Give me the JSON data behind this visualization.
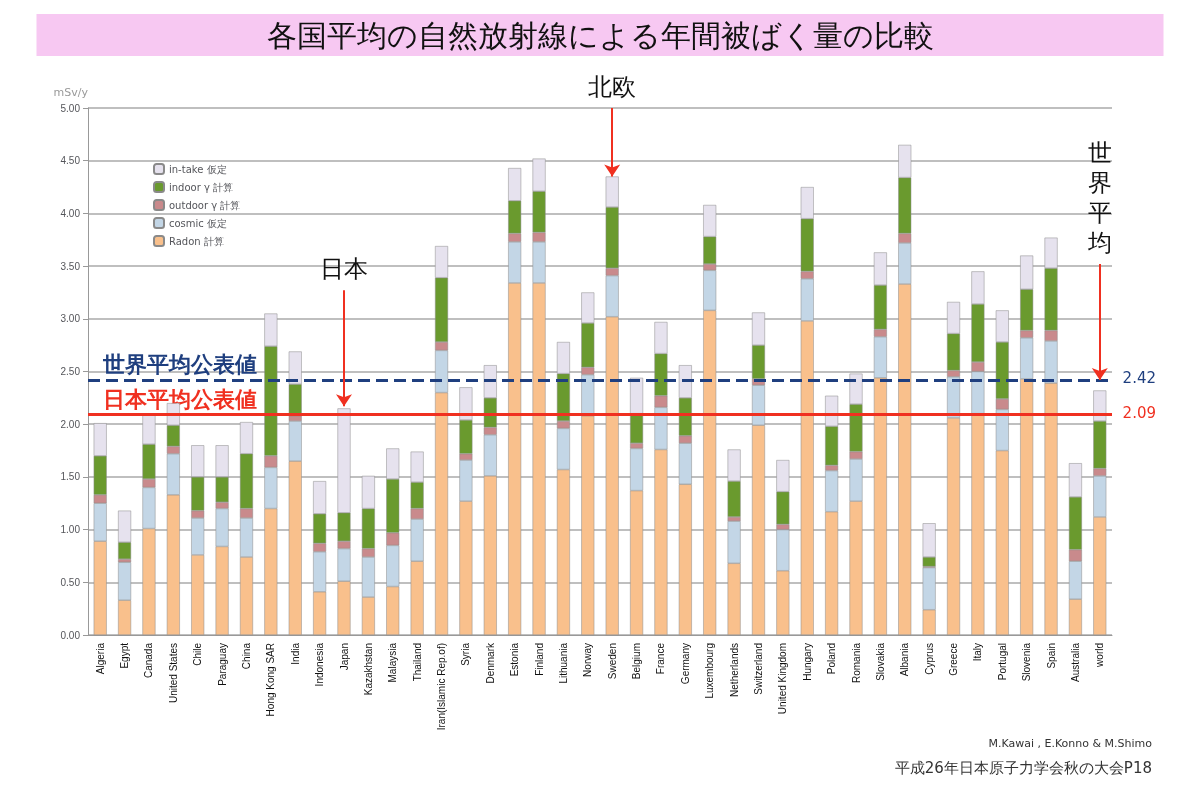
{
  "chart_data": {
    "type": "bar",
    "title": "各国平均の自然放射線による年間被ばく量の比較",
    "ylabel": "mSv/y",
    "categories": [
      "Algeria",
      "Egypt",
      "Canada",
      "United States",
      "Chile",
      "Paraguay",
      "China",
      "Hong Kong SAR",
      "India",
      "Indonesia",
      "Japan",
      "Kazakhstan",
      "Malaysia",
      "Thailand",
      "Iran(Islamic Rep.of)",
      "Syria",
      "Denmark",
      "Estonia",
      "Finland",
      "Lithuania",
      "Norway",
      "Sweden",
      "Belgium",
      "France",
      "Germany",
      "Luxembourg",
      "Netherlands",
      "Switzerland",
      "United Kingdom",
      "Hungary",
      "Poland",
      "Romania",
      "Slovakia",
      "Albania",
      "Cyprus",
      "Greece",
      "Italy",
      "Portugal",
      "Slovenia",
      "Spain",
      "Australia",
      "world"
    ],
    "stacked": true,
    "series": [
      {
        "name": "Radon 計算",
        "color": "#f9c08c",
        "values": [
          0.89,
          0.33,
          1.01,
          1.33,
          0.76,
          0.84,
          0.74,
          1.2,
          1.65,
          0.41,
          0.51,
          0.36,
          0.46,
          0.7,
          2.3,
          1.27,
          1.51,
          3.34,
          3.34,
          1.57,
          2.08,
          3.02,
          1.37,
          1.76,
          1.43,
          3.08,
          0.68,
          1.99,
          0.61,
          2.98,
          1.17,
          1.27,
          2.44,
          3.33,
          0.24,
          2.06,
          2.1,
          1.75,
          2.43,
          2.39,
          0.34,
          1.12
        ]
      },
      {
        "name": "cosmic 仮定",
        "color": "#c3d6e6",
        "values": [
          0.36,
          0.36,
          0.39,
          0.39,
          0.35,
          0.36,
          0.37,
          0.39,
          0.38,
          0.38,
          0.31,
          0.38,
          0.39,
          0.4,
          0.4,
          0.39,
          0.39,
          0.39,
          0.39,
          0.39,
          0.39,
          0.39,
          0.4,
          0.4,
          0.39,
          0.38,
          0.4,
          0.38,
          0.39,
          0.4,
          0.39,
          0.4,
          0.39,
          0.39,
          0.4,
          0.39,
          0.4,
          0.39,
          0.39,
          0.4,
          0.36,
          0.39
        ]
      },
      {
        "name": "outdoor γ 計算",
        "color": "#c98a8c",
        "values": [
          0.08,
          0.03,
          0.08,
          0.07,
          0.07,
          0.06,
          0.09,
          0.11,
          0.05,
          0.08,
          0.07,
          0.08,
          0.12,
          0.1,
          0.08,
          0.06,
          0.07,
          0.08,
          0.09,
          0.07,
          0.07,
          0.07,
          0.05,
          0.11,
          0.07,
          0.06,
          0.04,
          0.06,
          0.05,
          0.07,
          0.05,
          0.07,
          0.07,
          0.09,
          0.01,
          0.06,
          0.09,
          0.1,
          0.07,
          0.1,
          0.11,
          0.07
        ]
      },
      {
        "name": "indoor γ 計算",
        "color": "#6a9a2e",
        "values": [
          0.37,
          0.16,
          0.33,
          0.2,
          0.32,
          0.24,
          0.52,
          1.04,
          0.3,
          0.28,
          0.27,
          0.38,
          0.51,
          0.25,
          0.61,
          0.32,
          0.28,
          0.31,
          0.39,
          0.45,
          0.42,
          0.58,
          0.28,
          0.4,
          0.36,
          0.26,
          0.34,
          0.32,
          0.31,
          0.5,
          0.37,
          0.45,
          0.42,
          0.53,
          0.09,
          0.35,
          0.55,
          0.54,
          0.39,
          0.59,
          0.5,
          0.45
        ]
      },
      {
        "name": "in-take 仮定",
        "color": "#e6e2ee",
        "values": [
          0.31,
          0.3,
          0.29,
          0.21,
          0.3,
          0.3,
          0.3,
          0.31,
          0.31,
          0.31,
          0.99,
          0.31,
          0.29,
          0.29,
          0.3,
          0.31,
          0.31,
          0.31,
          0.31,
          0.3,
          0.29,
          0.29,
          0.34,
          0.3,
          0.31,
          0.3,
          0.3,
          0.31,
          0.3,
          0.3,
          0.29,
          0.29,
          0.31,
          0.31,
          0.32,
          0.3,
          0.31,
          0.3,
          0.32,
          0.29,
          0.32,
          0.29
        ]
      }
    ],
    "ylim": [
      0,
      5
    ],
    "yticks": [
      {
        "value": 0,
        "label": "0.00"
      },
      {
        "value": 0.5,
        "label": "0.50"
      },
      {
        "value": 1,
        "label": "1.00"
      },
      {
        "value": 1.5,
        "label": "1.50"
      },
      {
        "value": 2,
        "label": "2.00"
      },
      {
        "value": 2.5,
        "label": "2.50"
      },
      {
        "value": 3,
        "label": "3.00"
      },
      {
        "value": 3.5,
        "label": "3.50"
      },
      {
        "value": 4,
        "label": "4.00"
      },
      {
        "value": 4.5,
        "label": "4.50"
      },
      {
        "value": 5,
        "label": "5.00"
      }
    ],
    "grid": "y",
    "legend": "top left",
    "ref_lines": [
      {
        "axis": "y",
        "value": 2.42,
        "label": "世界平均公表値",
        "color": "#1f3f7f",
        "line_style": "dashed"
      },
      {
        "axis": "y",
        "value": 2.09,
        "label": "日本平均公表値",
        "color": "#f03020",
        "line_style": "solid"
      }
    ],
    "annotations": [
      {
        "text": "日本",
        "x": "Japan",
        "y": 2.17
      },
      {
        "text": "北欧",
        "x": "Sweden",
        "y": 4.35
      },
      "2.42",
      "2.09",
      {
        "text": "世界平均",
        "x": "world",
        "y": 2.42
      },
      "M.Kawai , E.Konno & M.Shimo",
      "平成26年日本原子力学会秋の大会P18"
    ]
  }
}
